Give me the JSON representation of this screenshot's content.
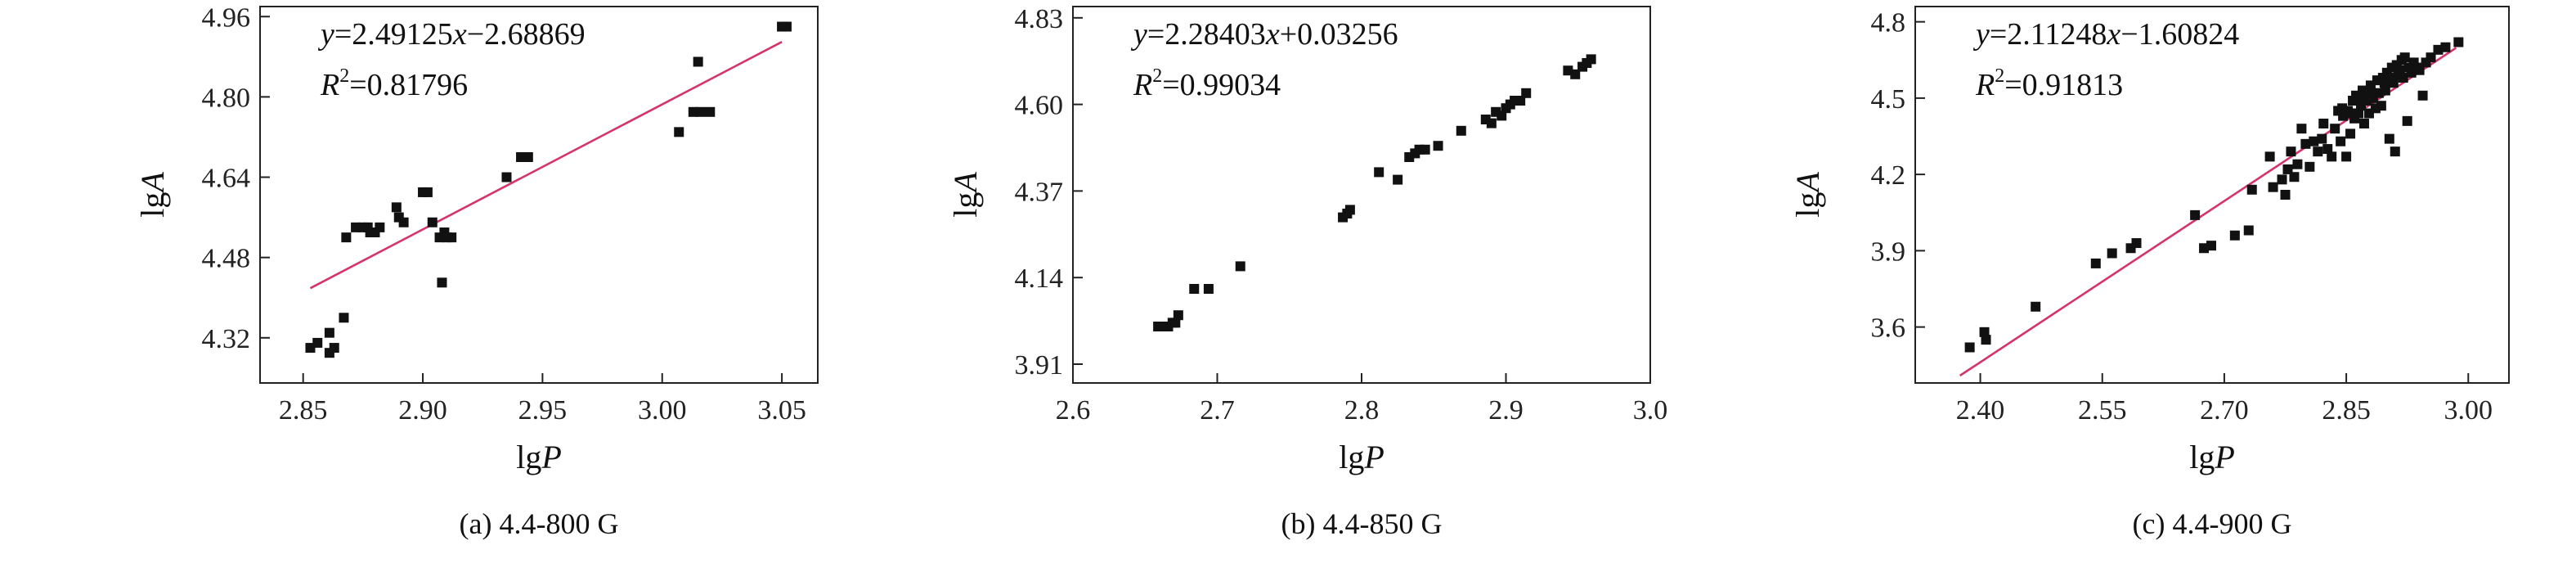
{
  "chart_data": [
    {
      "type": "scatter",
      "caption": "(a) 4.4-800 G",
      "xlabel_base": "lg",
      "xlabel_var": "P",
      "ylabel_base": "lg",
      "ylabel_var": "A",
      "equation_text": "y=2.49125x−2.68869",
      "r2_label": "R",
      "r2_sup": "2",
      "r2_value": "=0.81796",
      "fit": {
        "slope": 2.49125,
        "intercept": -2.68869,
        "x_start": 2.853,
        "x_end": 3.05
      },
      "xlim": [
        2.832,
        3.065
      ],
      "ylim": [
        4.23,
        4.98
      ],
      "x_ticks": [
        2.85,
        2.9,
        2.95,
        3.0,
        3.05
      ],
      "x_tick_labels": [
        "2.85",
        "2.90",
        "2.95",
        "3.00",
        "3.05"
      ],
      "y_ticks": [
        4.32,
        4.48,
        4.64,
        4.8,
        4.96
      ],
      "y_tick_labels": [
        "4.32",
        "4.48",
        "4.64",
        "4.80",
        "4.96"
      ],
      "points": [
        [
          2.853,
          4.3
        ],
        [
          2.856,
          4.31
        ],
        [
          2.861,
          4.33
        ],
        [
          2.861,
          4.29
        ],
        [
          2.863,
          4.3
        ],
        [
          2.867,
          4.36
        ],
        [
          2.868,
          4.52
        ],
        [
          2.872,
          4.54
        ],
        [
          2.875,
          4.54
        ],
        [
          2.877,
          4.54
        ],
        [
          2.878,
          4.53
        ],
        [
          2.88,
          4.53
        ],
        [
          2.882,
          4.54
        ],
        [
          2.889,
          4.58
        ],
        [
          2.89,
          4.56
        ],
        [
          2.892,
          4.55
        ],
        [
          2.9,
          4.61
        ],
        [
          2.902,
          4.61
        ],
        [
          2.904,
          4.55
        ],
        [
          2.907,
          4.52
        ],
        [
          2.908,
          4.43
        ],
        [
          2.909,
          4.53
        ],
        [
          2.91,
          4.52
        ],
        [
          2.912,
          4.52
        ],
        [
          2.935,
          4.64
        ],
        [
          2.941,
          4.68
        ],
        [
          2.944,
          4.68
        ],
        [
          3.007,
          4.73
        ],
        [
          3.013,
          4.77
        ],
        [
          3.015,
          4.87
        ],
        [
          3.016,
          4.77
        ],
        [
          3.02,
          4.77
        ],
        [
          3.05,
          4.94
        ],
        [
          3.052,
          4.94
        ]
      ]
    },
    {
      "type": "scatter",
      "caption": "(b) 4.4-850 G",
      "xlabel_base": "lg",
      "xlabel_var": "P",
      "ylabel_base": "lg",
      "ylabel_var": "A",
      "equation_text": "y=2.28403x+0.03256",
      "r2_label": "R",
      "r2_sup": "2",
      "r2_value": "=0.99034",
      "fit": {
        "slope": 2.28403,
        "intercept": 0.03256,
        "x_start": 2.66,
        "x_end": 2.962
      },
      "xlim": [
        2.6,
        3.0
      ],
      "ylim": [
        3.86,
        4.86
      ],
      "x_ticks": [
        2.6,
        2.7,
        2.8,
        2.9,
        3.0
      ],
      "x_tick_labels": [
        "2.6",
        "2.7",
        "2.8",
        "2.9",
        "3.0"
      ],
      "y_ticks": [
        3.91,
        4.14,
        4.37,
        4.6,
        4.83
      ],
      "y_tick_labels": [
        "3.91",
        "4.14",
        "4.37",
        "4.60",
        "4.83"
      ],
      "points": [
        [
          2.659,
          4.01
        ],
        [
          2.663,
          4.01
        ],
        [
          2.666,
          4.01
        ],
        [
          2.669,
          4.02
        ],
        [
          2.671,
          4.02
        ],
        [
          2.673,
          4.04
        ],
        [
          2.684,
          4.11
        ],
        [
          2.694,
          4.11
        ],
        [
          2.716,
          4.17
        ],
        [
          2.787,
          4.3
        ],
        [
          2.79,
          4.31
        ],
        [
          2.792,
          4.32
        ],
        [
          2.812,
          4.42
        ],
        [
          2.825,
          4.4
        ],
        [
          2.833,
          4.46
        ],
        [
          2.837,
          4.47
        ],
        [
          2.84,
          4.48
        ],
        [
          2.844,
          4.48
        ],
        [
          2.853,
          4.49
        ],
        [
          2.869,
          4.53
        ],
        [
          2.886,
          4.56
        ],
        [
          2.89,
          4.55
        ],
        [
          2.893,
          4.58
        ],
        [
          2.897,
          4.57
        ],
        [
          2.9,
          4.59
        ],
        [
          2.903,
          4.6
        ],
        [
          2.906,
          4.61
        ],
        [
          2.91,
          4.61
        ],
        [
          2.914,
          4.63
        ],
        [
          2.943,
          4.69
        ],
        [
          2.948,
          4.68
        ],
        [
          2.953,
          4.7
        ],
        [
          2.956,
          4.71
        ],
        [
          2.959,
          4.72
        ]
      ]
    },
    {
      "type": "scatter",
      "caption": "(c) 4.4-900 G",
      "xlabel_base": "lg",
      "xlabel_var": "P",
      "ylabel_base": "lg",
      "ylabel_var": "A",
      "equation_text": "y=2.11248x−1.60824",
      "r2_label": "R",
      "r2_sup": "2",
      "r2_value": "=0.91813",
      "fit": {
        "slope": 2.11248,
        "intercept": -1.60824,
        "x_start": 2.375,
        "x_end": 2.985
      },
      "xlim": [
        2.32,
        3.05
      ],
      "ylim": [
        3.38,
        4.86
      ],
      "x_ticks": [
        2.4,
        2.55,
        2.7,
        2.85,
        3.0
      ],
      "x_tick_labels": [
        "2.40",
        "2.55",
        "2.70",
        "2.85",
        "3.00"
      ],
      "y_ticks": [
        3.6,
        3.9,
        4.2,
        4.5,
        4.8
      ],
      "y_tick_labels": [
        "3.6",
        "3.9",
        "4.2",
        "4.5",
        "4.8"
      ],
      "points": [
        [
          2.387,
          3.52
        ],
        [
          2.405,
          3.58
        ],
        [
          2.407,
          3.55
        ],
        [
          2.468,
          3.68
        ],
        [
          2.542,
          3.85
        ],
        [
          2.562,
          3.89
        ],
        [
          2.585,
          3.91
        ],
        [
          2.592,
          3.93
        ],
        [
          2.664,
          4.04
        ],
        [
          2.675,
          3.91
        ],
        [
          2.684,
          3.92
        ],
        [
          2.713,
          3.96
        ],
        [
          2.73,
          3.98
        ],
        [
          2.734,
          4.14
        ],
        [
          2.756,
          4.27
        ],
        [
          2.76,
          4.15
        ],
        [
          2.771,
          4.18
        ],
        [
          2.775,
          4.12
        ],
        [
          2.778,
          4.22
        ],
        [
          2.782,
          4.29
        ],
        [
          2.786,
          4.19
        ],
        [
          2.79,
          4.24
        ],
        [
          2.795,
          4.38
        ],
        [
          2.8,
          4.32
        ],
        [
          2.805,
          4.23
        ],
        [
          2.81,
          4.33
        ],
        [
          2.815,
          4.29
        ],
        [
          2.82,
          4.34
        ],
        [
          2.822,
          4.4
        ],
        [
          2.827,
          4.3
        ],
        [
          2.832,
          4.27
        ],
        [
          2.836,
          4.38
        ],
        [
          2.84,
          4.45
        ],
        [
          2.843,
          4.33
        ],
        [
          2.846,
          4.43
        ],
        [
          2.85,
          4.27
        ],
        [
          2.852,
          4.45
        ],
        [
          2.855,
          4.36
        ],
        [
          2.858,
          4.49
        ],
        [
          2.86,
          4.42
        ],
        [
          2.862,
          4.51
        ],
        [
          2.865,
          4.44
        ],
        [
          2.868,
          4.47
        ],
        [
          2.87,
          4.53
        ],
        [
          2.872,
          4.4
        ],
        [
          2.875,
          4.49
        ],
        [
          2.878,
          4.44
        ],
        [
          2.88,
          4.55
        ],
        [
          2.883,
          4.5
        ],
        [
          2.886,
          4.46
        ],
        [
          2.888,
          4.57
        ],
        [
          2.89,
          4.52
        ],
        [
          2.893,
          4.47
        ],
        [
          2.895,
          4.58
        ],
        [
          2.898,
          4.53
        ],
        [
          2.9,
          4.6
        ],
        [
          2.903,
          4.34
        ],
        [
          2.906,
          4.62
        ],
        [
          2.908,
          4.56
        ],
        [
          2.91,
          4.29
        ],
        [
          2.912,
          4.63
        ],
        [
          2.914,
          4.59
        ],
        [
          2.916,
          4.61
        ],
        [
          2.918,
          4.65
        ],
        [
          2.92,
          4.58
        ],
        [
          2.922,
          4.66
        ],
        [
          2.925,
          4.41
        ],
        [
          2.927,
          4.62
        ],
        [
          2.93,
          4.6
        ],
        [
          2.933,
          4.64
        ],
        [
          2.936,
          4.62
        ],
        [
          2.94,
          4.61
        ],
        [
          2.944,
          4.51
        ],
        [
          2.948,
          4.64
        ],
        [
          2.954,
          4.66
        ],
        [
          2.963,
          4.69
        ],
        [
          2.972,
          4.7
        ],
        [
          2.988,
          4.72
        ],
        [
          2.845,
          4.46
        ],
        [
          2.857,
          4.44
        ],
        [
          2.869,
          4.5
        ],
        [
          2.881,
          4.52
        ],
        [
          2.897,
          4.56
        ],
        [
          2.905,
          4.58
        ]
      ]
    }
  ]
}
